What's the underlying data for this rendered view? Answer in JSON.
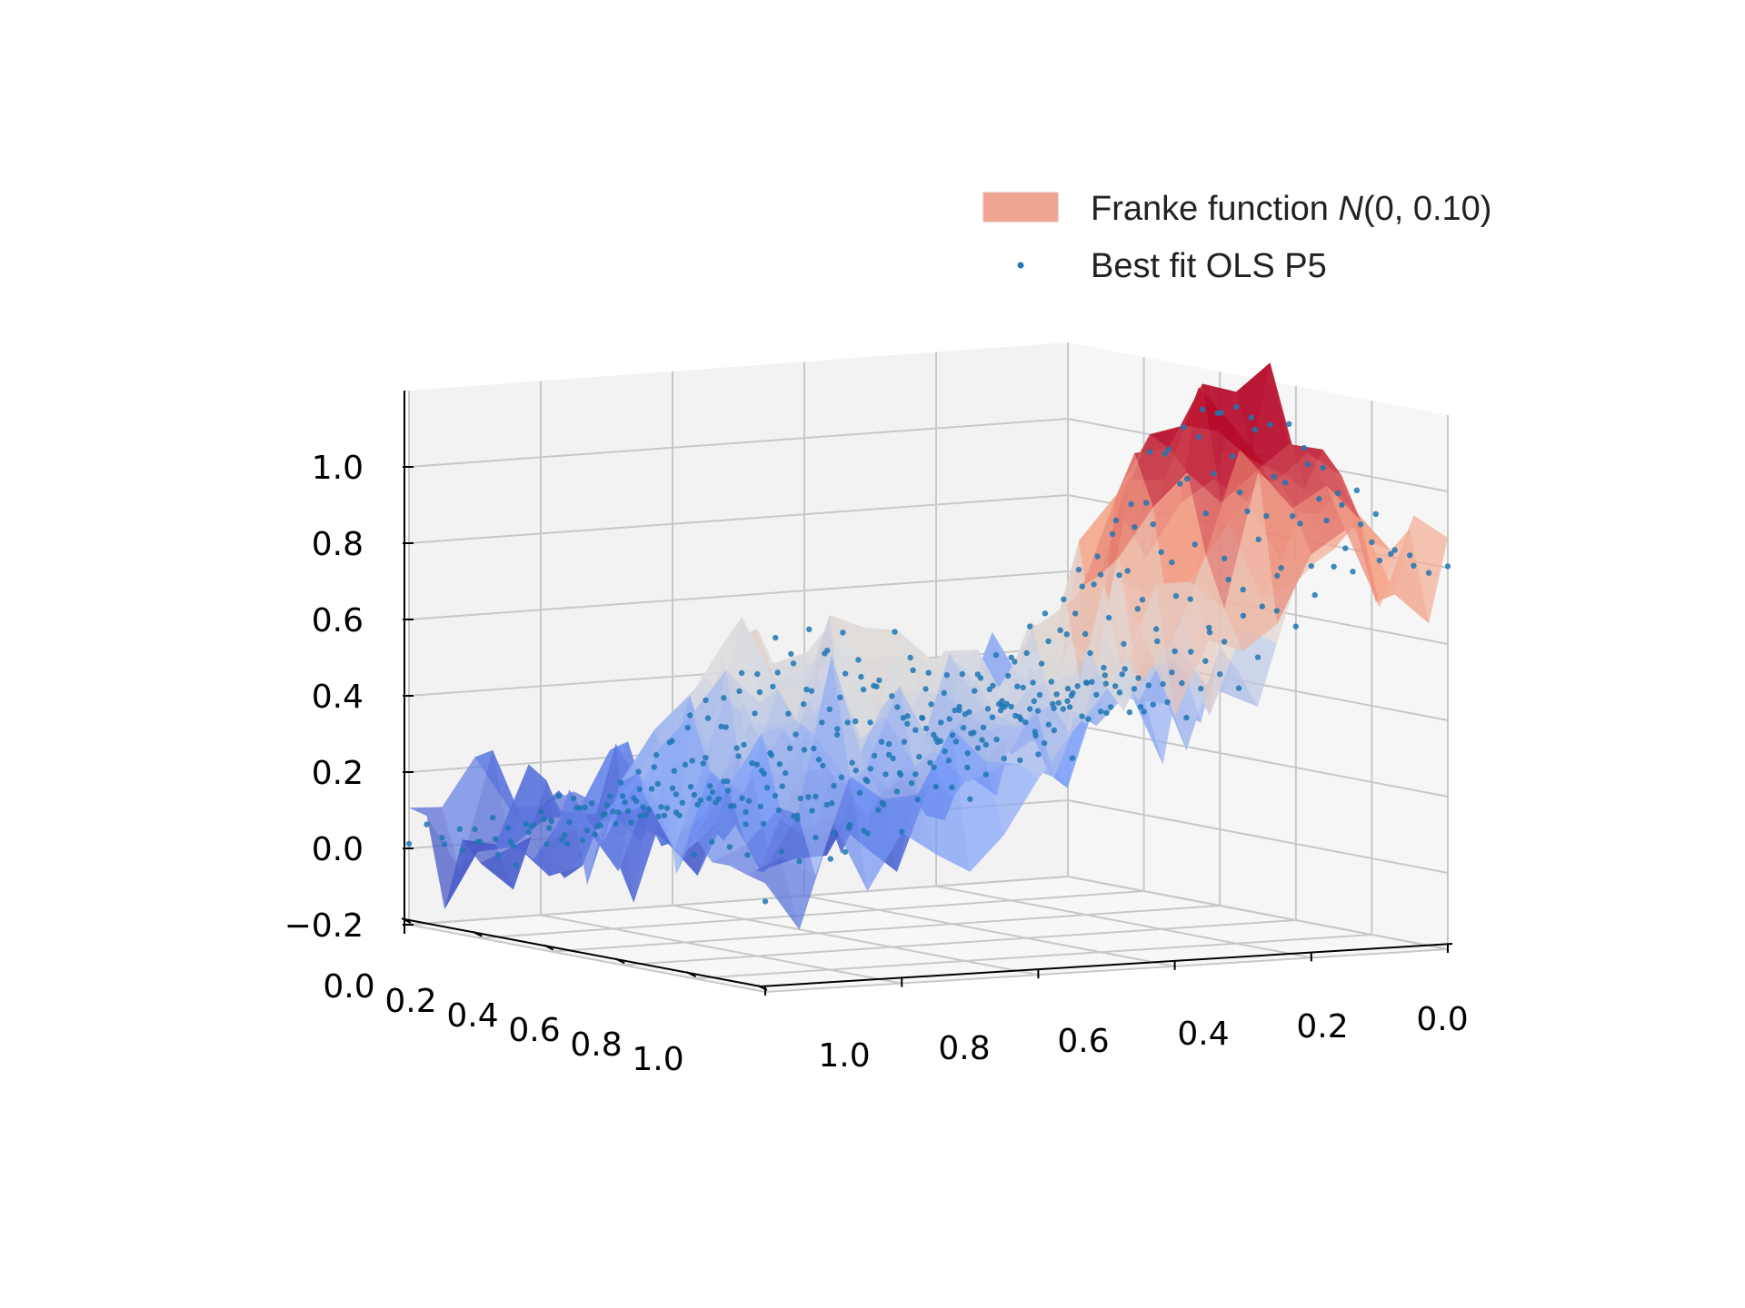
{
  "chart_data": {
    "type": "surface3d",
    "title": "",
    "xlabel": "",
    "ylabel": "",
    "zlabel": "",
    "xlim": [
      0.0,
      1.0
    ],
    "ylim": [
      0.0,
      1.0
    ],
    "zlim": [
      -0.2,
      1.2
    ],
    "grid": true,
    "legend_position": "top-right",
    "colormap": "coolwarm",
    "colors": {
      "surface_legend_patch": "#f0a593",
      "scatter": "#1f77b4",
      "pane": "#f2f2f2",
      "grid": "#c8c8c8"
    },
    "axes": {
      "left_horizontal_ticks": [
        "0.0",
        "0.2",
        "0.4",
        "0.6",
        "0.8",
        "1.0"
      ],
      "right_horizontal_ticks": [
        "1.0",
        "0.8",
        "0.6",
        "0.4",
        "0.2",
        "0.0"
      ],
      "vertical_ticks": [
        "−0.2",
        "0.0",
        "0.2",
        "0.4",
        "0.6",
        "0.8",
        "1.0"
      ]
    },
    "legend": [
      {
        "label_prefix": "Franke function ",
        "label_math": "N",
        "label_suffix": "(0, 0.10)",
        "kind": "surface"
      },
      {
        "label": "Best fit OLS P5",
        "kind": "scatter"
      }
    ],
    "surface": {
      "function": "Franke",
      "noise_mean": 0.0,
      "noise_std": 0.1
    },
    "fit": {
      "method": "OLS",
      "polynomial_degree": 5
    }
  }
}
